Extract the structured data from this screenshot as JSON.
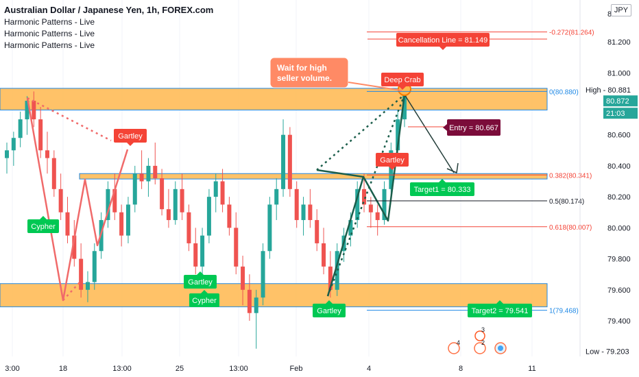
{
  "header": {
    "title": "Australian Dollar / Japanese Yen, 1h, FOREX.com",
    "indicators": [
      "Harmonic Patterns - Live",
      "Harmonic Patterns - Live",
      "Harmonic Patterns - Live"
    ],
    "currency": "JPY"
  },
  "colors": {
    "up": "#26a69a",
    "down": "#ef5350",
    "zone": "#ffb74d",
    "zone_edge": "#1e88e5",
    "pattern_red": "#f06a6a",
    "pattern_green": "#1b5e4b",
    "fib_red": "#f44336",
    "label_green": "#00c853",
    "label_red": "#f44336",
    "entry": "#7b0c3a",
    "note": "#ff8a65"
  },
  "chart_data": {
    "type": "candlestick",
    "symbol": "AUDJPY",
    "timeframe": "1h",
    "x_tick_labels": [
      "3:00",
      "18",
      "13:00",
      "25",
      "13:00",
      "Feb",
      "4",
      "8",
      "11"
    ],
    "y_tick_labels": [
      "81.200",
      "81.000",
      "80.600",
      "80.400",
      "80.200",
      "80.000",
      "79.800",
      "79.600",
      "79.400"
    ],
    "ylim": [
      79.17,
      81.47
    ],
    "price_labels": {
      "high": "High - 80.881",
      "current": "80.872",
      "countdown": "21:03",
      "low": "Low - 79.203",
      "stub": "81.4"
    },
    "candles": [
      [
        80.45,
        80.55,
        80.35,
        80.5
      ],
      [
        80.5,
        80.62,
        80.4,
        80.58
      ],
      [
        80.58,
        80.75,
        80.52,
        80.7
      ],
      [
        80.7,
        80.85,
        80.6,
        80.82
      ],
      [
        80.82,
        80.88,
        80.65,
        80.7
      ],
      [
        80.7,
        80.78,
        80.45,
        80.5
      ],
      [
        80.5,
        80.62,
        80.35,
        80.45
      ],
      [
        80.45,
        80.5,
        80.2,
        80.25
      ],
      [
        80.25,
        80.35,
        80.05,
        80.1
      ],
      [
        80.1,
        80.2,
        79.9,
        79.95
      ],
      [
        79.95,
        80.05,
        79.75,
        79.8
      ],
      [
        79.8,
        79.9,
        79.55,
        79.6
      ],
      [
        79.6,
        79.72,
        79.52,
        79.65
      ],
      [
        79.65,
        79.9,
        79.6,
        79.85
      ],
      [
        79.85,
        80.1,
        79.8,
        80.05
      ],
      [
        80.05,
        80.3,
        80.0,
        80.25
      ],
      [
        80.25,
        80.35,
        80.05,
        80.1
      ],
      [
        80.1,
        80.15,
        79.88,
        79.95
      ],
      [
        79.95,
        80.2,
        79.9,
        80.15
      ],
      [
        80.15,
        80.4,
        80.1,
        80.35
      ],
      [
        80.35,
        80.5,
        80.25,
        80.3
      ],
      [
        80.3,
        80.45,
        80.2,
        80.4
      ],
      [
        80.4,
        80.55,
        80.28,
        80.32
      ],
      [
        80.32,
        80.38,
        80.08,
        80.12
      ],
      [
        80.12,
        80.25,
        80.0,
        80.05
      ],
      [
        80.05,
        80.3,
        80.02,
        80.25
      ],
      [
        80.25,
        80.35,
        80.05,
        80.1
      ],
      [
        80.1,
        80.15,
        79.85,
        79.9
      ],
      [
        79.9,
        80.0,
        79.7,
        79.75
      ],
      [
        79.75,
        80.0,
        79.7,
        79.95
      ],
      [
        79.95,
        80.25,
        79.9,
        80.2
      ],
      [
        80.2,
        80.35,
        80.1,
        80.3
      ],
      [
        80.3,
        80.38,
        80.1,
        80.15
      ],
      [
        80.15,
        80.2,
        79.95,
        80.0
      ],
      [
        80.0,
        80.1,
        79.7,
        79.75
      ],
      [
        79.75,
        79.82,
        79.5,
        79.6
      ],
      [
        79.6,
        79.7,
        79.4,
        79.45
      ],
      [
        79.45,
        79.6,
        79.22,
        79.55
      ],
      [
        79.55,
        79.9,
        79.5,
        79.85
      ],
      [
        79.85,
        80.2,
        79.8,
        80.15
      ],
      [
        80.15,
        80.32,
        80.05,
        80.25
      ],
      [
        80.25,
        80.7,
        80.2,
        80.6
      ],
      [
        80.6,
        80.65,
        80.2,
        80.25
      ],
      [
        80.25,
        80.3,
        80.0,
        80.05
      ],
      [
        80.05,
        80.2,
        79.95,
        80.15
      ],
      [
        80.15,
        80.25,
        80.0,
        80.05
      ],
      [
        80.05,
        80.12,
        79.85,
        79.9
      ],
      [
        79.9,
        80.0,
        79.7,
        79.75
      ],
      [
        79.75,
        79.85,
        79.55,
        79.6
      ],
      [
        79.6,
        79.9,
        79.56,
        79.85
      ],
      [
        79.85,
        80.0,
        79.78,
        79.95
      ],
      [
        79.95,
        80.1,
        79.88,
        80.05
      ],
      [
        80.05,
        80.3,
        80.0,
        80.25
      ],
      [
        80.25,
        80.35,
        80.1,
        80.15
      ],
      [
        80.15,
        80.2,
        80.0,
        80.1
      ],
      [
        80.1,
        80.15,
        79.95,
        80.05
      ],
      [
        80.05,
        80.3,
        80.02,
        80.25
      ],
      [
        80.25,
        80.55,
        80.2,
        80.5
      ],
      [
        80.5,
        80.75,
        80.45,
        80.7
      ],
      [
        80.7,
        80.9,
        80.65,
        80.87
      ]
    ],
    "zones": [
      {
        "from": 80.76,
        "to": 80.9
      },
      {
        "from": 80.315,
        "to": 80.35
      },
      {
        "from": 79.49,
        "to": 79.64
      }
    ],
    "fib_levels": [
      {
        "label": "-0.272(81.264)",
        "value": 81.264
      },
      {
        "label": "0(80.880)",
        "value": 80.88
      },
      {
        "label": "0.382(80.341)",
        "value": 80.341
      },
      {
        "label": "0.5(80.174)",
        "value": 80.174
      },
      {
        "label": "0.618(80.007)",
        "value": 80.007
      },
      {
        "label": "1(79.468)",
        "value": 79.468
      }
    ],
    "pattern_labels": {
      "cypher1": "Cypher",
      "cypher2": "Cypher",
      "gartley1": "Gartley",
      "gartley2": "Gartley",
      "gartley3": "Gartley",
      "gartley4": "Gartley",
      "deep_crab": "Deep Crab"
    },
    "trade_labels": {
      "cancellation": "Cancellation Line = 81.149",
      "entry": "Entry = 80.667",
      "target1": "Target1 = 80.333",
      "target2": "Target2 = 79.541"
    },
    "note": "Wait for high seller volume.",
    "event_badges": [
      "4",
      "3",
      "2"
    ]
  }
}
